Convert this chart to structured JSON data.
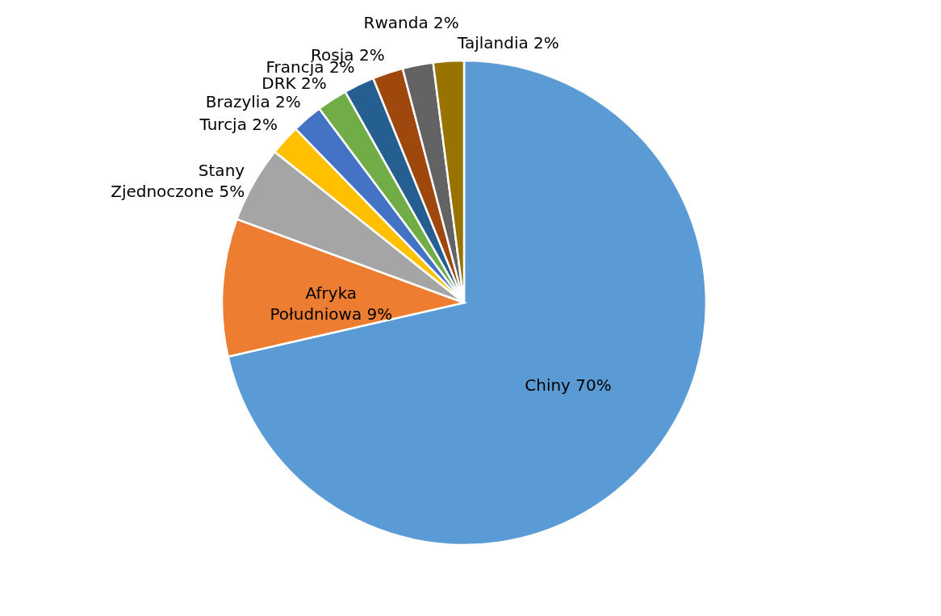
{
  "chart_data": {
    "type": "pie",
    "categories": [
      "Chiny",
      "Afryka Południowa",
      "Stany Zjednoczone",
      "Turcja",
      "Brazylia",
      "DRK",
      "Francja",
      "Rosja ",
      "Rwanda",
      "Tajlandia"
    ],
    "values": [
      70,
      9,
      5,
      2,
      2,
      2,
      2,
      2,
      2,
      2
    ],
    "value_labels": [
      "70%",
      "9%",
      "5%",
      "2%",
      "2%",
      "2%",
      "2%",
      "2%",
      "2%",
      "2%"
    ],
    "colors": [
      "#5b9bd5",
      "#ed7d31",
      "#a5a5a5",
      "#ffc000",
      "#4472c4",
      "#70ad47",
      "#255e91",
      "#9e480e",
      "#636363",
      "#997300"
    ],
    "legend": false
  }
}
